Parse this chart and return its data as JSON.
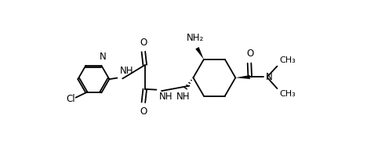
{
  "bg_color": "#ffffff",
  "line_color": "#000000",
  "lw": 1.3,
  "fs": 8.5,
  "figsize": [
    4.68,
    1.98
  ],
  "dpi": 100,
  "xlim": [
    0,
    9.36
  ],
  "ylim": [
    0,
    3.96
  ]
}
